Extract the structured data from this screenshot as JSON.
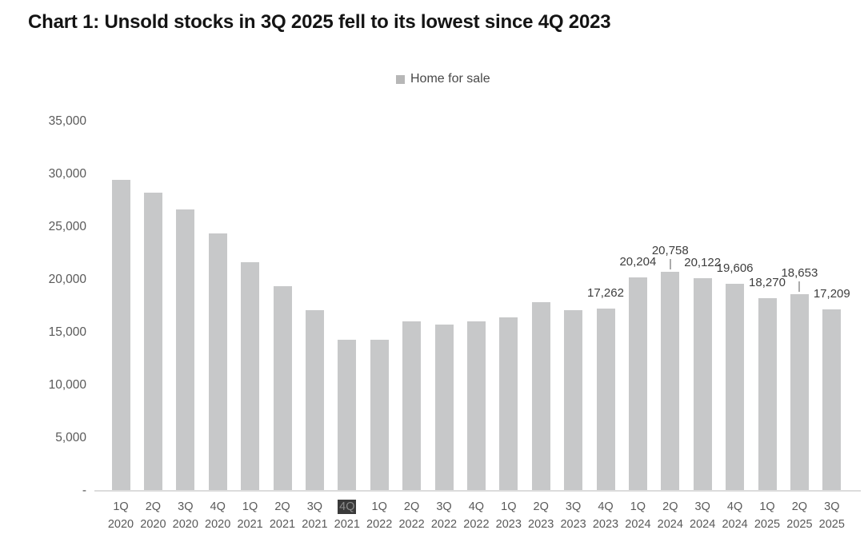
{
  "page": {
    "title": "Chart 1: Unsold stocks in 3Q 2025 fell to its lowest since 4Q 2023"
  },
  "legend": {
    "label": "Home for sale"
  },
  "colors": {
    "bar": "#c7c8c9",
    "legend_marker": "#b7b7b7",
    "axis_line": "#dcdcdc",
    "tick_text": "#595959",
    "data_label_text": "#3d3d3d",
    "title_text": "#141414",
    "highlighted_tick_bg": "#3a3a3a",
    "highlighted_tick_text": "#8c8c8c"
  },
  "chart_data": {
    "type": "bar",
    "title": "Chart 1: Unsold stocks in 3Q 2025 fell to its lowest since 4Q 2023",
    "series_name": "Home for sale",
    "legend_position": "top-center",
    "grid": false,
    "ylim": [
      0,
      35000
    ],
    "y_tick_labels_top_to_bottom": [
      "35,000",
      "30,000",
      "25,000",
      "20,000",
      "15,000",
      "10,000",
      "5,000",
      "-"
    ],
    "categories": [
      "1Q 2020",
      "2Q 2020",
      "3Q 2020",
      "4Q 2020",
      "1Q 2021",
      "2Q 2021",
      "3Q 2021",
      "4Q 2021",
      "1Q 2022",
      "2Q 2022",
      "3Q 2022",
      "4Q 2022",
      "1Q 2023",
      "2Q 2023",
      "3Q 2023",
      "4Q 2023",
      "1Q 2024",
      "2Q 2024",
      "3Q 2024",
      "4Q 2024",
      "1Q 2025",
      "2Q 2025",
      "3Q 2025"
    ],
    "values": [
      29500,
      28250,
      26700,
      24400,
      21650,
      19400,
      17150,
      14300,
      14300,
      16050,
      15750,
      16100,
      16450,
      17900,
      17100,
      17262,
      20204,
      20758,
      20122,
      19606,
      18270,
      18653,
      17209
    ],
    "bar_labels": [
      null,
      null,
      null,
      null,
      null,
      null,
      null,
      null,
      null,
      null,
      null,
      null,
      null,
      null,
      null,
      "17,262",
      "20,204",
      "20,758",
      "20,122",
      "19,606",
      "18,270",
      "18,653",
      "17,209"
    ],
    "label_leader_lines": [
      false,
      false,
      false,
      false,
      false,
      false,
      false,
      false,
      false,
      false,
      false,
      false,
      false,
      false,
      false,
      false,
      false,
      true,
      false,
      false,
      false,
      true,
      false
    ],
    "highlighted_x_tick": "4Q 2021"
  }
}
